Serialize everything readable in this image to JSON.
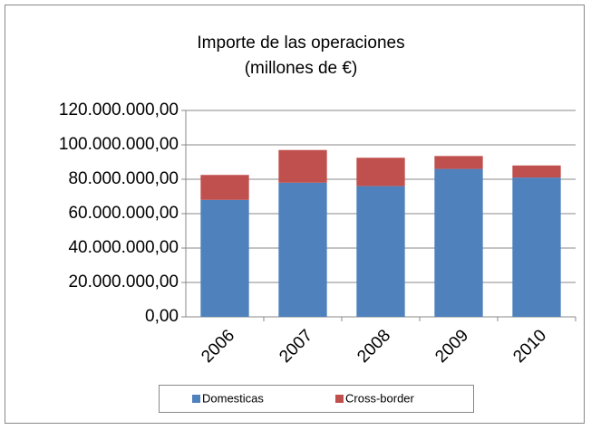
{
  "chart_data": {
    "type": "stacked_bar",
    "title": "Importe de las operaciones",
    "subtitle": "(millones de €)",
    "categories": [
      "2006",
      "2007",
      "2008",
      "2009",
      "2010"
    ],
    "series": [
      {
        "name": "Domesticas",
        "color": "#4f81bd",
        "values": [
          68000000,
          78000000,
          76000000,
          86000000,
          81000000
        ]
      },
      {
        "name": "Cross-border",
        "color": "#c0504d",
        "values": [
          14500000,
          19000000,
          16500000,
          7500000,
          7000000
        ]
      }
    ],
    "ylim": [
      0,
      120000000
    ],
    "yticks": [
      {
        "value": 0,
        "label": "0,00"
      },
      {
        "value": 20000000,
        "label": "20.000.000,00"
      },
      {
        "value": 40000000,
        "label": "40.000.000,00"
      },
      {
        "value": 60000000,
        "label": "60.000.000,00"
      },
      {
        "value": 80000000,
        "label": "80.000.000,00"
      },
      {
        "value": 100000000,
        "label": "100.000.000,00"
      },
      {
        "value": 120000000,
        "label": "120.000.000,00"
      }
    ],
    "grid": true,
    "legend": "bottom"
  }
}
